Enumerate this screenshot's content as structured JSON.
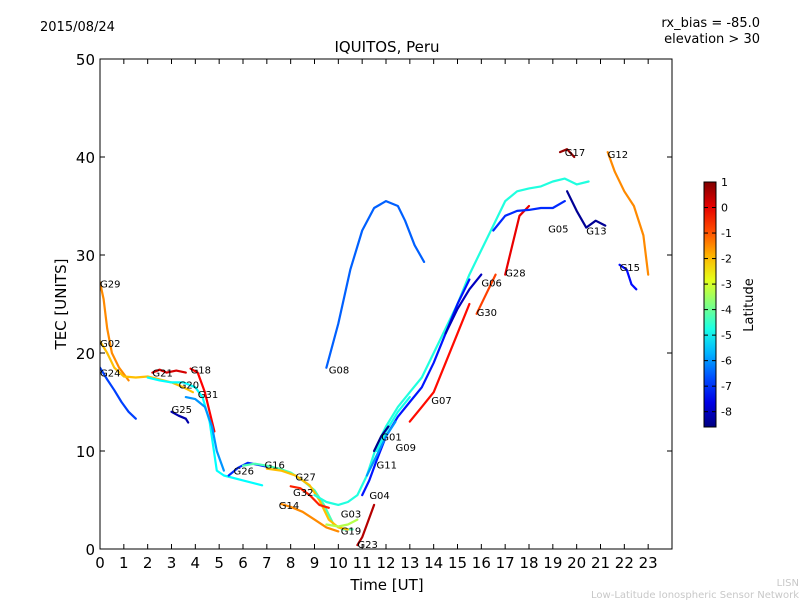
{
  "header": {
    "date": "2015/08/24",
    "title": "IQUITOS, Peru",
    "rx_bias": "rx_bias = -85.0",
    "elevation": "elevation > 30"
  },
  "footer": {
    "line1": "LISN",
    "line2": "Low-Latitude Ionospheric Sensor Network"
  },
  "chart_data": {
    "type": "scatter",
    "title": "IQUITOS, Peru",
    "xlabel": "Time [UT]",
    "ylabel": "TEC [UNITS]",
    "xlim": [
      0,
      24
    ],
    "ylim": [
      0,
      50
    ],
    "xticks": [
      "0",
      "1",
      "2",
      "3",
      "4",
      "5",
      "6",
      "7",
      "8",
      "9",
      "10",
      "11",
      "12",
      "13",
      "14",
      "15",
      "16",
      "17",
      "18",
      "19",
      "20",
      "21",
      "22",
      "23"
    ],
    "yticks": [
      "0",
      "10",
      "20",
      "30",
      "40",
      "50"
    ],
    "colorbar": {
      "label": "Latitude",
      "min": -8.6,
      "max": 1.0,
      "ticks": [
        "1",
        "0",
        "-1",
        "-2",
        "-3",
        "-4",
        "-5",
        "-6",
        "-7",
        "-8"
      ]
    },
    "series": [
      {
        "name": "G29",
        "label_at": [
          0.0,
          27.1
        ],
        "lat": -1.5,
        "points": [
          [
            0.0,
            27.2
          ],
          [
            0.15,
            25.5
          ],
          [
            0.3,
            22.5
          ],
          [
            0.5,
            20.0
          ],
          [
            0.8,
            18.5
          ],
          [
            1.2,
            17.2
          ]
        ]
      },
      {
        "name": "G02",
        "label_at": [
          0.0,
          21.0
        ],
        "lat": -2.0,
        "points": [
          [
            0.0,
            21.2
          ],
          [
            0.3,
            20.0
          ],
          [
            0.6,
            18.5
          ],
          [
            1.0,
            17.6
          ],
          [
            1.5,
            17.5
          ],
          [
            2.0,
            17.6
          ],
          [
            2.5,
            17.3
          ],
          [
            3.0,
            17.0
          ],
          [
            3.5,
            16.5
          ],
          [
            3.9,
            16.0
          ]
        ]
      },
      {
        "name": "G24",
        "label_at": [
          0.0,
          18.0
        ],
        "lat": -6.8,
        "points": [
          [
            0.0,
            18.5
          ],
          [
            0.3,
            17.3
          ],
          [
            0.6,
            16.2
          ],
          [
            0.9,
            15.0
          ],
          [
            1.2,
            14.0
          ],
          [
            1.5,
            13.3
          ]
        ]
      },
      {
        "name": "G21",
        "label_at": [
          2.2,
          18.0
        ],
        "lat": 0.2,
        "points": [
          [
            2.2,
            18.0
          ],
          [
            2.5,
            18.3
          ],
          [
            2.8,
            18.0
          ],
          [
            3.2,
            18.2
          ],
          [
            3.6,
            18.0
          ]
        ]
      },
      {
        "name": "G18",
        "label_at": [
          3.8,
          18.3
        ],
        "lat": -0.2,
        "points": [
          [
            3.8,
            18.4
          ],
          [
            4.1,
            18.0
          ],
          [
            4.4,
            16.0
          ],
          [
            4.6,
            14.0
          ],
          [
            4.8,
            12.0
          ]
        ]
      },
      {
        "name": "G20",
        "label_at": [
          3.3,
          16.8
        ],
        "lat": -5.0,
        "points": [
          [
            2.0,
            17.5
          ],
          [
            2.5,
            17.2
          ],
          [
            3.0,
            17.0
          ],
          [
            3.5,
            17.0
          ],
          [
            4.0,
            16.5
          ],
          [
            4.3,
            15.5
          ],
          [
            4.6,
            13.0
          ],
          [
            4.9,
            8.0
          ],
          [
            5.2,
            7.5
          ],
          [
            6.0,
            7.0
          ],
          [
            6.8,
            6.5
          ]
        ]
      },
      {
        "name": "G31",
        "label_at": [
          4.1,
          15.8
        ],
        "lat": -6.0,
        "points": [
          [
            3.6,
            15.5
          ],
          [
            4.0,
            15.3
          ],
          [
            4.4,
            14.5
          ],
          [
            4.7,
            12.5
          ],
          [
            4.9,
            10.0
          ],
          [
            5.2,
            8.0
          ]
        ]
      },
      {
        "name": "G25",
        "label_at": [
          3.0,
          14.3
        ],
        "lat": -8.2,
        "points": [
          [
            3.0,
            14.0
          ],
          [
            3.3,
            13.6
          ],
          [
            3.6,
            13.3
          ],
          [
            3.7,
            12.9
          ]
        ]
      },
      {
        "name": "G26",
        "label_at": [
          5.6,
          8.0
        ],
        "lat": -7.0,
        "points": [
          [
            5.4,
            7.5
          ],
          [
            5.8,
            8.3
          ],
          [
            6.2,
            8.8
          ],
          [
            6.6,
            8.6
          ],
          [
            7.0,
            8.4
          ]
        ]
      },
      {
        "name": "G16",
        "label_at": [
          6.9,
          8.6
        ],
        "lat": -4.3,
        "points": [
          [
            6.0,
            8.5
          ],
          [
            6.5,
            8.7
          ],
          [
            7.0,
            8.5
          ],
          [
            7.5,
            8.2
          ],
          [
            8.0,
            7.8
          ],
          [
            8.5,
            7.0
          ],
          [
            9.0,
            6.0
          ],
          [
            9.4,
            4.5
          ],
          [
            9.8,
            2.5
          ],
          [
            10.2,
            2.0
          ],
          [
            10.6,
            2.0
          ]
        ]
      },
      {
        "name": "G27",
        "label_at": [
          8.2,
          7.4
        ],
        "lat": -2.0,
        "points": [
          [
            7.0,
            8.2
          ],
          [
            7.6,
            8.0
          ],
          [
            8.2,
            7.5
          ],
          [
            8.8,
            6.5
          ],
          [
            9.2,
            5.0
          ],
          [
            9.6,
            3.0
          ],
          [
            10.0,
            2.2
          ],
          [
            10.4,
            2.0
          ]
        ]
      },
      {
        "name": "G32",
        "label_at": [
          8.1,
          5.8
        ],
        "lat": -0.5,
        "points": [
          [
            8.0,
            6.4
          ],
          [
            8.4,
            6.2
          ],
          [
            8.8,
            5.5
          ],
          [
            9.2,
            4.5
          ],
          [
            9.6,
            4.2
          ]
        ]
      },
      {
        "name": "G14",
        "label_at": [
          7.5,
          4.5
        ],
        "lat": -1.5,
        "points": [
          [
            7.6,
            4.6
          ],
          [
            8.0,
            4.3
          ],
          [
            8.5,
            3.8
          ],
          [
            9.0,
            3.0
          ],
          [
            9.5,
            2.2
          ],
          [
            10.0,
            1.8
          ]
        ]
      },
      {
        "name": "G03",
        "label_at": [
          10.1,
          3.6
        ],
        "lat": -4.7,
        "points": [
          [
            9.0,
            5.5
          ],
          [
            9.5,
            4.8
          ],
          [
            10.0,
            4.5
          ],
          [
            10.4,
            4.8
          ],
          [
            10.8,
            5.5
          ],
          [
            11.2,
            7.5
          ],
          [
            11.6,
            10.5
          ],
          [
            12.0,
            12.5
          ],
          [
            12.5,
            14.5
          ],
          [
            13.0,
            16.0
          ],
          [
            13.5,
            17.5
          ],
          [
            14.0,
            20.0
          ],
          [
            14.5,
            22.5
          ],
          [
            15.0,
            25.0
          ],
          [
            15.5,
            28.0
          ],
          [
            16.0,
            30.5
          ],
          [
            16.5,
            33.0
          ],
          [
            17.0,
            35.5
          ],
          [
            17.5,
            36.5
          ],
          [
            18.0,
            36.8
          ],
          [
            18.5,
            37.0
          ],
          [
            19.0,
            37.5
          ],
          [
            19.5,
            37.8
          ],
          [
            20.0,
            37.2
          ],
          [
            20.5,
            37.5
          ]
        ]
      },
      {
        "name": "G19",
        "label_at": [
          10.1,
          1.9
        ],
        "lat": -3.3,
        "points": [
          [
            9.5,
            2.5
          ],
          [
            10.0,
            2.3
          ],
          [
            10.4,
            2.5
          ],
          [
            10.8,
            3.0
          ]
        ]
      },
      {
        "name": "G23",
        "label_at": [
          10.8,
          0.5
        ],
        "lat": 0.5,
        "points": [
          [
            10.8,
            0.4
          ],
          [
            11.0,
            1.2
          ],
          [
            11.2,
            2.5
          ],
          [
            11.5,
            4.5
          ]
        ]
      },
      {
        "name": "G04",
        "label_at": [
          11.3,
          5.5
        ],
        "lat": -7.2,
        "points": [
          [
            11.0,
            5.5
          ],
          [
            11.3,
            7.0
          ],
          [
            11.6,
            9.0
          ],
          [
            12.0,
            11.5
          ],
          [
            12.5,
            13.5
          ],
          [
            13.0,
            15.0
          ],
          [
            13.5,
            16.5
          ],
          [
            14.0,
            19.0
          ],
          [
            14.5,
            22.0
          ],
          [
            15.0,
            25.0
          ],
          [
            15.5,
            27.5
          ]
        ]
      },
      {
        "name": "G11",
        "label_at": [
          11.6,
          8.6
        ],
        "lat": -6.0,
        "points": [
          [
            11.2,
            7.5
          ],
          [
            11.6,
            9.5
          ],
          [
            12.0,
            11.5
          ],
          [
            12.4,
            13.0
          ]
        ]
      },
      {
        "name": "G09",
        "label_at": [
          12.4,
          10.4
        ],
        "lat": -4.8,
        "points": [
          [
            11.6,
            10.0
          ],
          [
            12.0,
            12.0
          ],
          [
            12.5,
            14.0
          ],
          [
            13.0,
            15.5
          ]
        ]
      },
      {
        "name": "G01",
        "label_at": [
          11.8,
          11.5
        ],
        "lat": -8.5,
        "points": [
          [
            11.5,
            10.0
          ],
          [
            11.8,
            11.5
          ],
          [
            12.1,
            12.5
          ]
        ]
      },
      {
        "name": "G07",
        "label_at": [
          13.9,
          15.2
        ],
        "lat": -0.3,
        "points": [
          [
            13.0,
            13.0
          ],
          [
            13.5,
            14.5
          ],
          [
            14.0,
            16.0
          ],
          [
            14.5,
            19.0
          ],
          [
            15.0,
            22.0
          ],
          [
            15.5,
            25.0
          ]
        ]
      },
      {
        "name": "G08",
        "label_at": [
          9.6,
          18.3
        ],
        "lat": -6.5,
        "points": [
          [
            9.5,
            18.5
          ],
          [
            10.0,
            23.0
          ],
          [
            10.5,
            28.5
          ],
          [
            11.0,
            32.5
          ],
          [
            11.5,
            34.8
          ],
          [
            12.0,
            35.5
          ],
          [
            12.5,
            35.0
          ],
          [
            12.8,
            33.5
          ],
          [
            13.2,
            31.0
          ],
          [
            13.6,
            29.3
          ]
        ]
      },
      {
        "name": "G30",
        "label_at": [
          15.8,
          24.2
        ],
        "lat": -0.8,
        "points": [
          [
            15.8,
            24.0
          ],
          [
            16.2,
            26.0
          ],
          [
            16.6,
            28.0
          ]
        ]
      },
      {
        "name": "G06",
        "label_at": [
          16.0,
          27.2
        ],
        "lat": -8.0,
        "points": [
          [
            14.5,
            22.0
          ],
          [
            15.0,
            24.5
          ],
          [
            15.5,
            26.5
          ],
          [
            16.0,
            28.0
          ]
        ]
      },
      {
        "name": "G28",
        "label_at": [
          17.0,
          28.2
        ],
        "lat": 0.0,
        "points": [
          [
            17.0,
            28.0
          ],
          [
            17.3,
            31.0
          ],
          [
            17.6,
            34.0
          ],
          [
            18.0,
            35.0
          ]
        ]
      },
      {
        "name": "G05",
        "label_at": [
          18.8,
          32.7
        ],
        "lat": -7.0,
        "points": [
          [
            16.5,
            32.5
          ],
          [
            17.0,
            34.0
          ],
          [
            17.5,
            34.5
          ],
          [
            18.0,
            34.6
          ],
          [
            18.5,
            34.8
          ],
          [
            19.0,
            34.8
          ],
          [
            19.5,
            35.5
          ]
        ]
      },
      {
        "name": "G17",
        "label_at": [
          19.5,
          40.5
        ],
        "lat": 0.8,
        "points": [
          [
            19.3,
            40.5
          ],
          [
            19.6,
            40.8
          ],
          [
            19.9,
            40.0
          ]
        ]
      },
      {
        "name": "G12",
        "label_at": [
          21.3,
          40.3
        ],
        "lat": -1.5,
        "points": [
          [
            21.3,
            40.5
          ],
          [
            21.6,
            38.5
          ],
          [
            22.0,
            36.5
          ],
          [
            22.4,
            35.0
          ],
          [
            22.8,
            32.0
          ],
          [
            23.0,
            28.0
          ]
        ]
      },
      {
        "name": "G13",
        "label_at": [
          20.4,
          32.5
        ],
        "lat": -8.4,
        "points": [
          [
            19.6,
            36.5
          ],
          [
            20.0,
            34.5
          ],
          [
            20.4,
            32.8
          ],
          [
            20.8,
            33.5
          ],
          [
            21.2,
            33.0
          ]
        ]
      },
      {
        "name": "G15",
        "label_at": [
          21.8,
          28.8
        ],
        "lat": -7.3,
        "points": [
          [
            21.8,
            29.0
          ],
          [
            22.1,
            28.5
          ],
          [
            22.3,
            27.0
          ],
          [
            22.5,
            26.5
          ]
        ]
      }
    ]
  }
}
